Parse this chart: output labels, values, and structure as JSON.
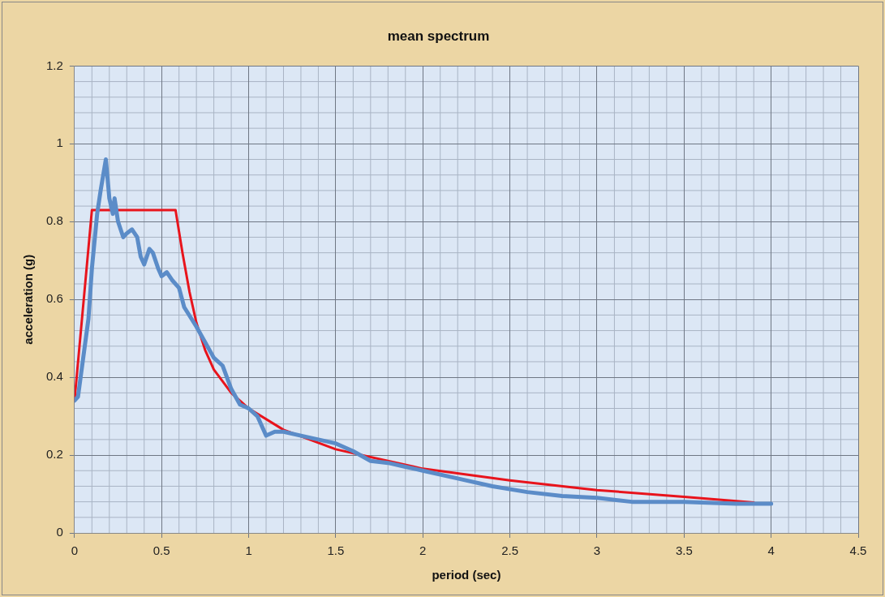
{
  "chart_data": {
    "type": "line",
    "title": "mean spectrum",
    "xlabel": "period (sec)",
    "ylabel": "acceleration (g)",
    "xlim": [
      0,
      4.5
    ],
    "xticks": [
      0,
      0.5,
      1,
      1.5,
      2,
      2.5,
      3,
      3.5,
      4,
      4.5
    ],
    "ylim": [
      0,
      1.2
    ],
    "yticks": [
      0,
      0.2,
      0.4,
      0.6,
      0.8,
      1,
      1.2
    ],
    "grid": true,
    "legend": false,
    "marker": "none",
    "line_style": "solid",
    "series": [
      {
        "color": "#5b8cc8",
        "x": [
          0,
          0.02,
          0.05,
          0.08,
          0.1,
          0.13,
          0.15,
          0.18,
          0.2,
          0.22,
          0.23,
          0.25,
          0.28,
          0.3,
          0.33,
          0.36,
          0.38,
          0.4,
          0.43,
          0.45,
          0.48,
          0.5,
          0.53,
          0.56,
          0.6,
          0.63,
          0.7,
          0.75,
          0.8,
          0.85,
          0.9,
          0.95,
          1,
          1.05,
          1.1,
          1.15,
          1.2,
          1.3,
          1.4,
          1.5,
          1.55,
          1.6,
          1.7,
          1.8,
          1.9,
          2,
          2.2,
          2.4,
          2.6,
          2.8,
          3,
          3.2,
          3.5,
          3.8,
          4
        ],
        "values": [
          0.34,
          0.35,
          0.45,
          0.55,
          0.68,
          0.82,
          0.88,
          0.96,
          0.86,
          0.82,
          0.86,
          0.8,
          0.76,
          0.77,
          0.78,
          0.76,
          0.71,
          0.69,
          0.73,
          0.72,
          0.68,
          0.66,
          0.67,
          0.65,
          0.63,
          0.58,
          0.53,
          0.49,
          0.45,
          0.43,
          0.37,
          0.33,
          0.32,
          0.3,
          0.25,
          0.26,
          0.26,
          0.25,
          0.24,
          0.23,
          0.22,
          0.21,
          0.185,
          0.18,
          0.17,
          0.16,
          0.14,
          0.12,
          0.105,
          0.095,
          0.09,
          0.08,
          0.08,
          0.075,
          0.075
        ]
      },
      {
        "color": "#e8141c",
        "x": [
          0,
          0.1,
          0.58,
          0.62,
          0.66,
          0.7,
          0.75,
          0.8,
          0.9,
          1,
          1.2,
          1.5,
          2,
          2.5,
          3,
          3.5,
          3.9
        ],
        "values": [
          0.34,
          0.83,
          0.83,
          0.72,
          0.62,
          0.54,
          0.47,
          0.42,
          0.36,
          0.32,
          0.265,
          0.215,
          0.165,
          0.135,
          0.11,
          0.093,
          0.078
        ]
      }
    ]
  }
}
